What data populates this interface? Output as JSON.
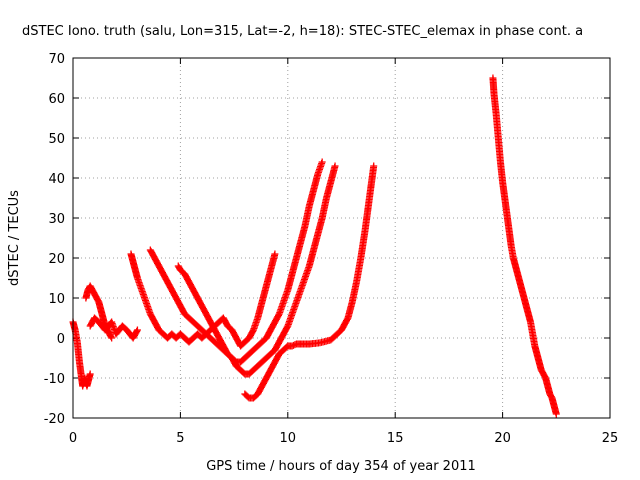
{
  "chart_data": {
    "type": "scatter",
    "title": "dSTEC Iono. truth (salu, Lon=315, Lat=-2, h=18): STEC-STEC_elemax in phase cont. a",
    "xlabel": "GPS time / hours of day 354 of year 2011",
    "ylabel": "dSTEC  / TECUs",
    "xlim": [
      0,
      25
    ],
    "ylim": [
      -20,
      70
    ],
    "xticks": [
      0,
      5,
      10,
      15,
      20,
      25
    ],
    "yticks": [
      -20,
      -10,
      0,
      10,
      20,
      30,
      40,
      50,
      60,
      70
    ],
    "grid": true,
    "marker": "+",
    "color": "#ff0000",
    "series": [
      {
        "x": [
          0.0,
          0.1,
          0.2,
          0.3,
          0.4,
          0.45,
          0.5,
          0.55,
          0.6,
          0.65,
          0.7,
          0.8
        ],
        "y": [
          4,
          2,
          -1,
          -6,
          -10,
          -12,
          -11,
          -10,
          -11,
          -12,
          -11,
          -9
        ]
      },
      {
        "x": [
          0.6,
          0.7,
          0.8,
          0.9,
          1.0,
          1.1,
          1.2,
          1.3,
          1.4,
          1.5,
          1.6,
          1.7,
          1.8
        ],
        "y": [
          10,
          12,
          13,
          12,
          11,
          10,
          9,
          7,
          5,
          3,
          2,
          1,
          0
        ]
      },
      {
        "x": [
          0.8,
          1.0,
          1.2,
          1.5,
          1.8,
          2.0,
          2.3,
          2.5,
          2.8,
          3.0
        ],
        "y": [
          3,
          5,
          4,
          2,
          4,
          1,
          3,
          2,
          0,
          2
        ]
      },
      {
        "x": [
          2.7,
          2.8,
          2.9,
          3.0,
          3.2,
          3.4,
          3.6,
          3.8,
          4.0,
          4.2,
          4.4,
          4.6,
          4.8,
          5.0,
          5.2,
          5.4,
          5.6,
          5.8,
          6.0,
          6.2,
          6.4,
          6.6,
          6.8,
          7.0,
          7.2,
          7.4,
          7.6,
          7.8,
          8.0,
          8.2,
          8.4,
          8.6,
          8.8,
          9.0,
          9.2,
          9.4
        ],
        "y": [
          21,
          19,
          17,
          15,
          12,
          9,
          6,
          4,
          2,
          1,
          0,
          1,
          0,
          1,
          0,
          -1,
          0,
          1,
          0,
          1,
          2,
          3,
          4,
          5,
          3,
          2,
          0,
          -2,
          -1,
          0,
          2,
          5,
          9,
          13,
          17,
          21
        ]
      },
      {
        "x": [
          3.6,
          3.8,
          4.0,
          4.2,
          4.4,
          4.6,
          4.8,
          5.0,
          5.2,
          5.4,
          5.6,
          5.8,
          6.0,
          6.2,
          6.4,
          6.6,
          6.8,
          7.0,
          7.2,
          7.4,
          7.6,
          7.8,
          8.0,
          8.2,
          8.4,
          8.6,
          8.8,
          9.0,
          9.2,
          9.4,
          9.6,
          9.8,
          10.0,
          10.2,
          10.4,
          10.6,
          10.8,
          11.0,
          11.2,
          11.4,
          11.6
        ],
        "y": [
          22,
          20,
          18,
          16,
          14,
          12,
          10,
          8,
          6,
          5,
          4,
          3,
          2,
          1,
          0,
          -1,
          -2,
          -3,
          -4,
          -5,
          -6,
          -6,
          -5,
          -4,
          -3,
          -2,
          -1,
          0,
          2,
          4,
          6,
          9,
          12,
          16,
          20,
          24,
          28,
          33,
          37,
          41,
          44
        ]
      },
      {
        "x": [
          4.9,
          5.0,
          5.2,
          5.4,
          5.6,
          5.8,
          6.0,
          6.2,
          6.4,
          6.6,
          6.8,
          7.0,
          7.2,
          7.4,
          7.6,
          7.8,
          8.0,
          8.2,
          8.4,
          8.6,
          8.8,
          9.0,
          9.2,
          9.4,
          9.6,
          9.8,
          10.0,
          10.2,
          10.4,
          10.6,
          10.8,
          11.0,
          11.2,
          11.4,
          11.6,
          11.8,
          12.0,
          12.2
        ],
        "y": [
          18,
          17,
          16,
          14,
          12,
          10,
          8,
          6,
          4,
          2,
          0,
          -2,
          -4,
          -5,
          -7,
          -8,
          -9,
          -9,
          -8,
          -7,
          -6,
          -5,
          -4,
          -3,
          -1,
          1,
          3,
          6,
          9,
          12,
          15,
          18,
          22,
          26,
          30,
          35,
          39,
          43
        ]
      },
      {
        "x": [
          8.0,
          8.2,
          8.4,
          8.6,
          8.8,
          9.0,
          9.2,
          9.4,
          9.6,
          9.8,
          10.0,
          10.2,
          10.4,
          10.6,
          10.8,
          11.0,
          11.5,
          12.0,
          12.5,
          12.8,
          13.0,
          13.2,
          13.4,
          13.6,
          13.8,
          14.0
        ],
        "y": [
          -14,
          -15,
          -15,
          -14,
          -12,
          -10,
          -8,
          -6,
          -4,
          -3,
          -2,
          -2,
          -1.5,
          -1.5,
          -1.5,
          -1.5,
          -1.2,
          -0.5,
          2,
          5,
          9,
          14,
          20,
          27,
          35,
          43
        ]
      },
      {
        "x": [
          19.55,
          19.6,
          19.7,
          19.8,
          19.9,
          20.0,
          20.1,
          20.2,
          20.3,
          20.4,
          20.5,
          20.6,
          20.7,
          20.8,
          20.9,
          21.0,
          21.1,
          21.2,
          21.3,
          21.4,
          21.5,
          21.6,
          21.7,
          21.8,
          21.9,
          22.0,
          22.1,
          22.2,
          22.3,
          22.4,
          22.5
        ],
        "y": [
          65,
          61,
          56,
          50,
          44,
          39,
          35,
          31,
          27,
          23,
          20,
          18,
          16,
          14,
          12,
          10,
          8,
          6,
          4,
          1,
          -2,
          -4,
          -6,
          -8,
          -9,
          -10,
          -12,
          -14,
          -15,
          -17,
          -19
        ]
      }
    ]
  }
}
